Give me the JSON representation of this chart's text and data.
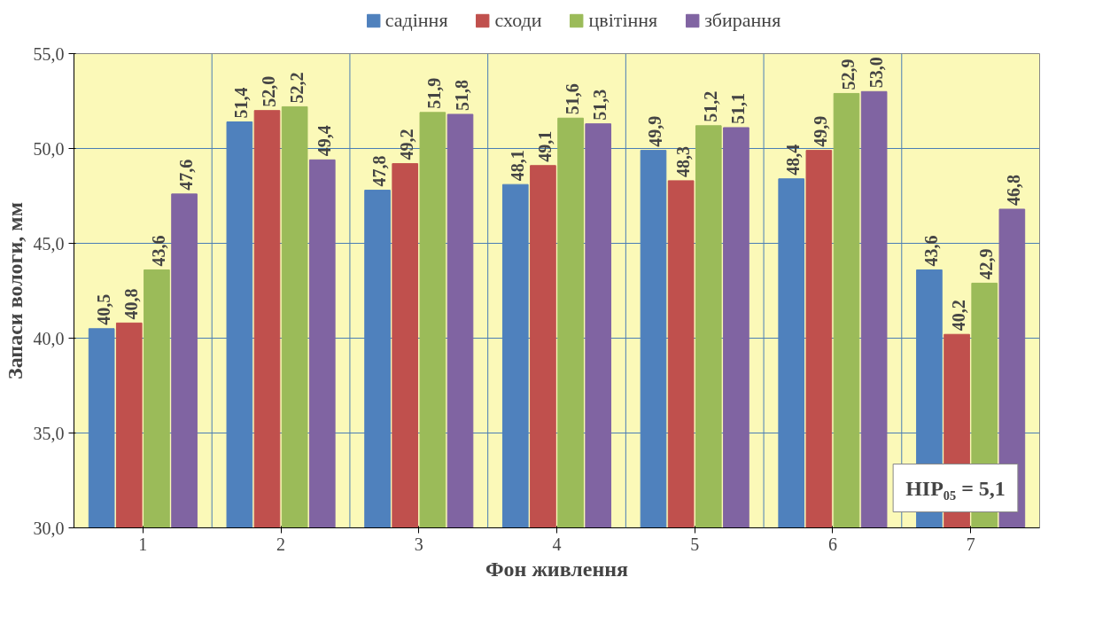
{
  "chart_data": {
    "type": "bar",
    "xlabel": "Фон живлення",
    "ylabel": "Запаси вологи, мм",
    "categories": [
      "1",
      "2",
      "3",
      "4",
      "5",
      "6",
      "7"
    ],
    "series": [
      {
        "name": "садіння",
        "color": "#4f81bd",
        "values": [
          40.5,
          51.4,
          47.8,
          48.1,
          49.9,
          48.4,
          43.6
        ],
        "value_labels": [
          "40,5",
          "51,4",
          "47,8",
          "48,1",
          "49,9",
          "48,4",
          "43,6"
        ]
      },
      {
        "name": "сходи",
        "color": "#c0504d",
        "values": [
          40.8,
          52.0,
          49.2,
          49.1,
          48.3,
          49.9,
          40.2
        ],
        "value_labels": [
          "40,8",
          "52,0",
          "49,2",
          "49,1",
          "48,3",
          "49,9",
          "40,2"
        ]
      },
      {
        "name": "цвітіння",
        "color": "#9bbb59",
        "values": [
          43.6,
          52.2,
          51.9,
          51.6,
          51.2,
          52.9,
          42.9
        ],
        "value_labels": [
          "43,6",
          "52,2",
          "51,9",
          "51,6",
          "51,2",
          "52,9",
          "42,9"
        ]
      },
      {
        "name": "збирання",
        "color": "#8064a2",
        "values": [
          47.6,
          49.4,
          51.8,
          51.3,
          51.1,
          53.0,
          46.8
        ],
        "value_labels": [
          "47,6",
          "49,4",
          "51,8",
          "51,3",
          "51,1",
          "53,0",
          "46,8"
        ]
      }
    ],
    "ylim": [
      30,
      55
    ],
    "yticks": [
      {
        "value": 30,
        "label": "30,0"
      },
      {
        "value": 35,
        "label": "35,0"
      },
      {
        "value": 40,
        "label": "40,0"
      },
      {
        "value": 45,
        "label": "45,0"
      },
      {
        "value": 50,
        "label": "50,0"
      },
      {
        "value": 55,
        "label": "55,0"
      }
    ],
    "grid": true,
    "legend": "top",
    "annotations": [
      "НІР₀₅ = 5,1"
    ]
  }
}
